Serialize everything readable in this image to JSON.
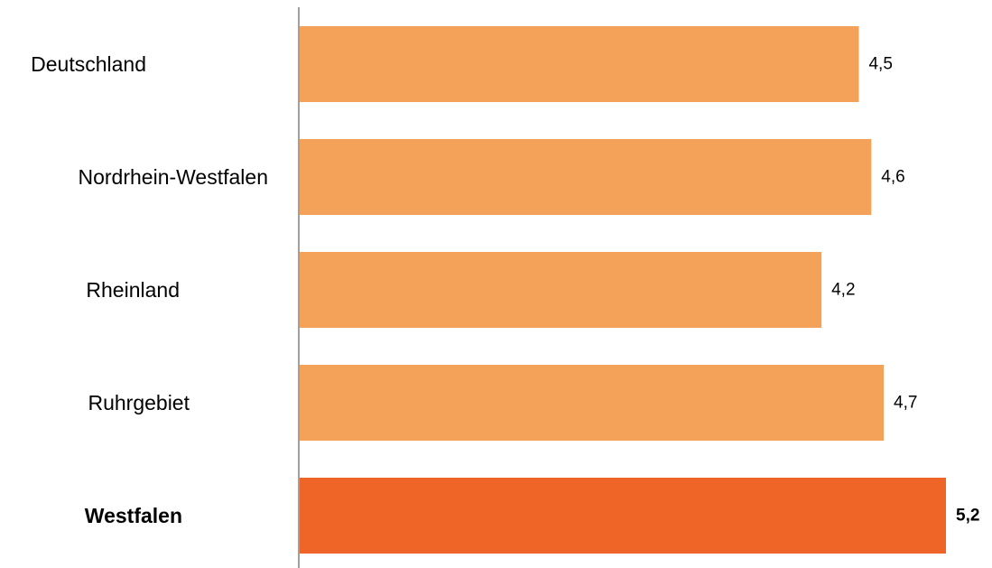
{
  "chart_data": {
    "type": "bar",
    "orientation": "horizontal",
    "categories": [
      "Deutschland",
      "Nordrhein-Westfalen",
      "Rheinland",
      "Ruhrgebiet",
      "Westfalen"
    ],
    "values": [
      4.5,
      4.6,
      4.2,
      4.7,
      5.2
    ],
    "value_labels": [
      "4,5",
      "4,6",
      "4,2",
      "4,7",
      "5,2"
    ],
    "highlight": [
      false,
      false,
      false,
      false,
      true
    ],
    "xlim": [
      0,
      5.2
    ],
    "grid": false,
    "legend": "none",
    "title": "",
    "xlabel": "",
    "ylabel": ""
  },
  "colors": {
    "bar": "#F4A25A",
    "bar_highlight": "#EF6527",
    "axis": "#808080"
  }
}
